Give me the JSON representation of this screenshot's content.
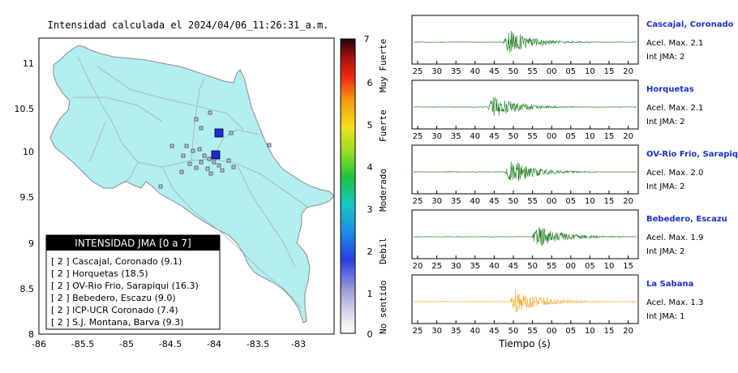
{
  "map": {
    "title": "Intensidad calculada el 2024/04/06_11:26:31_a.m.",
    "x_ticks": [
      "-86",
      "-85.5",
      "-85",
      "-84.5",
      "-84",
      "-83.5",
      "-83"
    ],
    "y_ticks": [
      "11",
      "10.5",
      "10",
      "9.5",
      "9",
      "8.5",
      "8"
    ],
    "legend_title": "INTENSIDAD JMA [0 a 7]",
    "stations": [
      "[ 2 ]  Cascajal, Coronado (9.1)",
      "[ 2 ]  Horquetas (18.5)",
      "[ 2 ]  OV-Rio Frio, Sarapiqui (16.3)",
      "[ 2 ]  Bebedero, Escazu (9.0)",
      "[ 2 ]  ICP-UCR Coronado (7.4)",
      "[ 2 ]  S.J. Montana, Barva (9.3)"
    ],
    "colorbar_ticks": [
      "0",
      "1",
      "2",
      "3",
      "4",
      "5",
      "6",
      "7"
    ],
    "colorbar_categories": [
      "No sentido",
      "Debil",
      "Moderado",
      "Fuerte",
      "Muy Fuerte"
    ],
    "colors": {
      "land": "#b3eef0",
      "station": "#c2c2e6",
      "epicenter": "#1b2bdc"
    }
  },
  "waveforms": {
    "xlabel": "Tiempo (s)",
    "panels": [
      {
        "station": "Cascajal, Coronado",
        "accel": "Acel. Max. 2.1",
        "int": "Int JMA: 2",
        "color": "#1a7a1a",
        "ticks": [
          "25",
          "30",
          "35",
          "40",
          "45",
          "50",
          "55",
          "00",
          "05",
          "10",
          "15",
          "20"
        ]
      },
      {
        "station": "Horquetas",
        "accel": "Acel. Max. 2.1",
        "int": "Int JMA: 2",
        "color": "#1a7a1a",
        "ticks": [
          "25",
          "30",
          "35",
          "40",
          "45",
          "50",
          "55",
          "00",
          "05",
          "10",
          "15",
          "20"
        ]
      },
      {
        "station": "OV-Rio Frio, Sarapiqui",
        "accel": "Acel. Max. 2.0",
        "int": "Int JMA: 2",
        "color": "#1a7a1a",
        "ticks": [
          "25",
          "30",
          "35",
          "40",
          "45",
          "50",
          "55",
          "00",
          "05",
          "10",
          "15",
          "20"
        ]
      },
      {
        "station": "Bebedero, Escazu",
        "accel": "Acel. Max. 1.9",
        "int": "Int JMA: 2",
        "color": "#1a7a1a",
        "ticks": [
          "20",
          "25",
          "30",
          "35",
          "40",
          "45",
          "50",
          "55",
          "00",
          "05",
          "10",
          "15"
        ]
      },
      {
        "station": "La Sabana",
        "accel": "Acel. Max. 1.3",
        "int": "Int JMA: 1",
        "color": "#f2a81c",
        "ticks": [
          "25",
          "30",
          "35",
          "40",
          "45",
          "50",
          "55",
          "00",
          "05",
          "10",
          "15",
          "20"
        ]
      }
    ]
  }
}
